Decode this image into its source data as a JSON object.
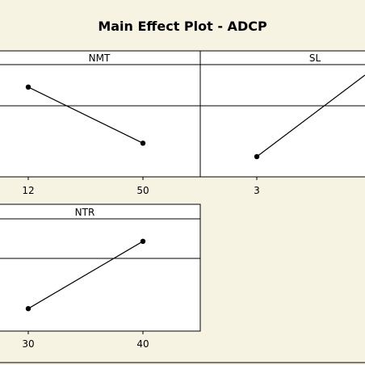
{
  "chart_data": {
    "type": "line",
    "title": "Main Effect Plot - ADCP",
    "panels": [
      {
        "name": "NMT",
        "x": [
          "12",
          "50"
        ],
        "y": [
          0.8,
          0.3
        ]
      },
      {
        "name": "SL",
        "x": [
          "3"
        ],
        "y": [
          0.18
        ]
      },
      {
        "name": "NTR",
        "x": [
          "30",
          "40"
        ],
        "y": [
          0.2,
          0.8
        ]
      }
    ],
    "ylim": [
      0,
      1
    ],
    "reference_line": 0.5,
    "grid": false
  },
  "colors": {
    "background": "#f7f3e3",
    "panel_fill": "#ffffff",
    "line": "#000000"
  }
}
